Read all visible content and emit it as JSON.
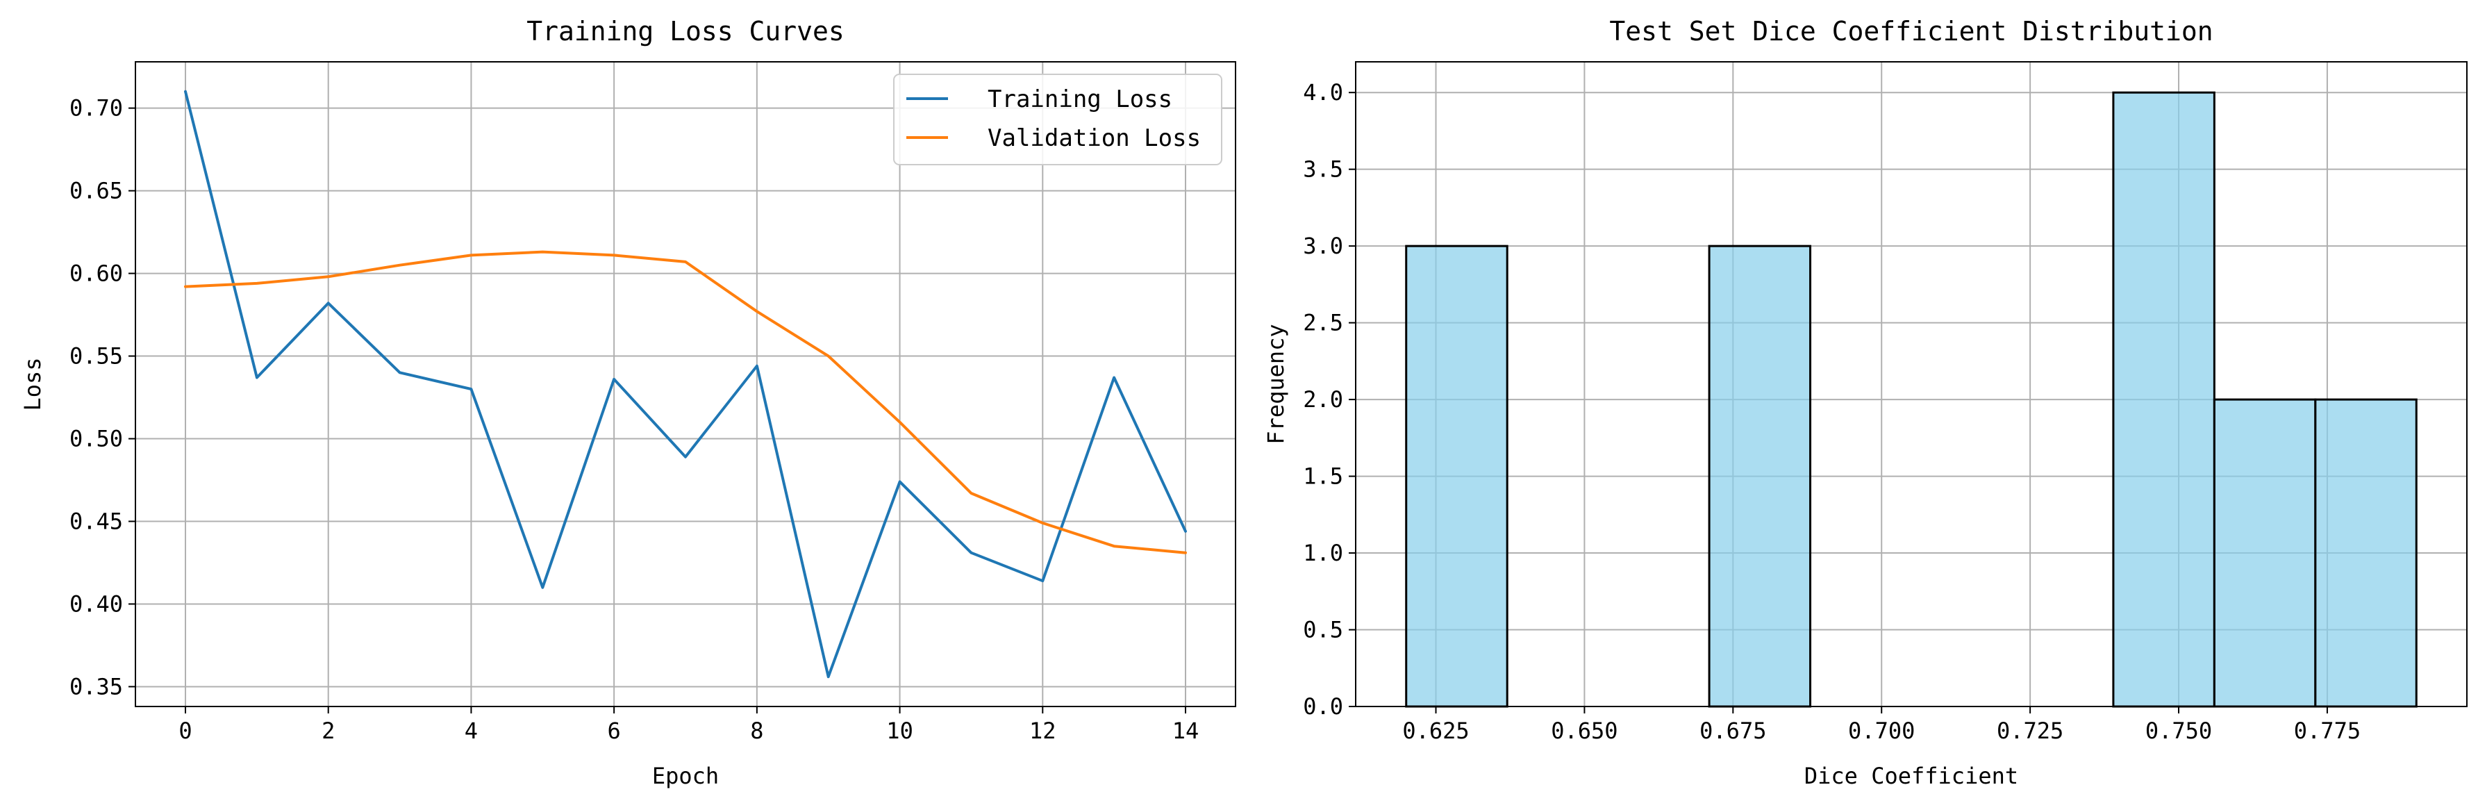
{
  "chart_data": [
    {
      "type": "line",
      "title": "Training Loss Curves",
      "xlabel": "Epoch",
      "ylabel": "Loss",
      "x": [
        0,
        1,
        2,
        3,
        4,
        5,
        6,
        7,
        8,
        9,
        10,
        11,
        12,
        13,
        14
      ],
      "series": [
        {
          "name": "Training Loss",
          "color": "#1f77b4",
          "values": [
            0.71,
            0.537,
            0.582,
            0.54,
            0.53,
            0.41,
            0.536,
            0.489,
            0.544,
            0.356,
            0.474,
            0.431,
            0.414,
            0.537,
            0.444
          ]
        },
        {
          "name": "Validation Loss",
          "color": "#ff7f0e",
          "values": [
            0.592,
            0.594,
            0.598,
            0.605,
            0.611,
            0.613,
            0.611,
            0.607,
            0.577,
            0.55,
            0.51,
            0.467,
            0.449,
            0.435,
            0.431
          ]
        }
      ],
      "xlim": [
        -0.7,
        14.7
      ],
      "ylim": [
        0.338,
        0.728
      ],
      "xticks": [
        0,
        2,
        4,
        6,
        8,
        10,
        12,
        14
      ],
      "xtick_labels": [
        "0",
        "2",
        "4",
        "6",
        "8",
        "10",
        "12",
        "14"
      ],
      "yticks": [
        0.35,
        0.4,
        0.45,
        0.5,
        0.55,
        0.6,
        0.65,
        0.7
      ],
      "ytick_labels": [
        "0.35",
        "0.40",
        "0.45",
        "0.50",
        "0.55",
        "0.60",
        "0.65",
        "0.70"
      ],
      "grid": true,
      "legend": "upper right"
    },
    {
      "type": "bar",
      "title": "Test Set Dice Coefficient Distribution",
      "xlabel": "Dice Coefficient",
      "ylabel": "Frequency",
      "bars": [
        {
          "start": 0.62,
          "end": 0.637,
          "value": 3
        },
        {
          "start": 0.637,
          "end": 0.654,
          "value": 0
        },
        {
          "start": 0.654,
          "end": 0.671,
          "value": 0
        },
        {
          "start": 0.671,
          "end": 0.688,
          "value": 3
        },
        {
          "start": 0.688,
          "end": 0.705,
          "value": 0
        },
        {
          "start": 0.705,
          "end": 0.722,
          "value": 0
        },
        {
          "start": 0.722,
          "end": 0.739,
          "value": 0
        },
        {
          "start": 0.739,
          "end": 0.756,
          "value": 4
        },
        {
          "start": 0.756,
          "end": 0.773,
          "value": 2
        },
        {
          "start": 0.773,
          "end": 0.79,
          "value": 2
        }
      ],
      "bar_color": "#87ceeb",
      "edge_color": "#000000",
      "xlim": [
        0.6115,
        0.7985
      ],
      "ylim": [
        0,
        4.2
      ],
      "xticks": [
        0.625,
        0.65,
        0.675,
        0.7,
        0.725,
        0.75,
        0.775
      ],
      "xtick_labels": [
        "0.625",
        "0.650",
        "0.675",
        "0.700",
        "0.725",
        "0.750",
        "0.775"
      ],
      "yticks": [
        0,
        0.5,
        1.0,
        1.5,
        2.0,
        2.5,
        3.0,
        3.5,
        4.0
      ],
      "ytick_labels": [
        "0.0",
        "0.5",
        "1.0",
        "1.5",
        "2.0",
        "2.5",
        "3.0",
        "3.5",
        "4.0"
      ],
      "grid": true
    }
  ]
}
